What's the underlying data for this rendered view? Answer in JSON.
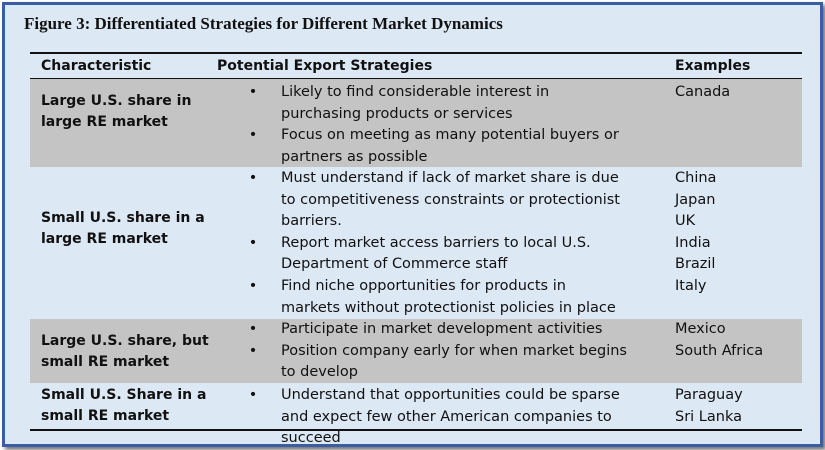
{
  "title": "Figure 3: Differentiated Strategies for Different Market Dynamics",
  "headers": {
    "characteristic": "Characteristic",
    "strategies": "Potential Export Strategies",
    "examples": "Examples"
  },
  "rows": [
    {
      "characteristic": "Large U.S. share in large RE market",
      "strategies": [
        "Likely to find considerable interest in purchasing products or services",
        "Focus on meeting as many potential buyers or partners as possible"
      ],
      "examples": [
        "Canada"
      ]
    },
    {
      "characteristic": "Small U.S. share in a large RE market",
      "strategies": [
        "Must understand if lack of market share is due to competitiveness constraints or protectionist barriers.",
        "Report market access barriers to local U.S. Department of Commerce staff",
        "Find niche opportunities for products in markets without protectionist policies in place"
      ],
      "examples": [
        "China",
        "Japan",
        "UK",
        "India",
        "Brazil",
        "Italy"
      ]
    },
    {
      "characteristic": "Large U.S. share, but small RE market",
      "strategies": [
        "Participate in market development activities",
        "Position company early for when market begins to develop"
      ],
      "examples": [
        "Mexico",
        "South Africa"
      ]
    },
    {
      "characteristic": "Small U.S. Share in a small RE market",
      "strategies": [
        "Understand that opportunities could be sparse and expect few other American companies to succeed"
      ],
      "examples": [
        "Paraguay",
        "Sri Lanka"
      ]
    }
  ],
  "bullet_glyph": "•"
}
